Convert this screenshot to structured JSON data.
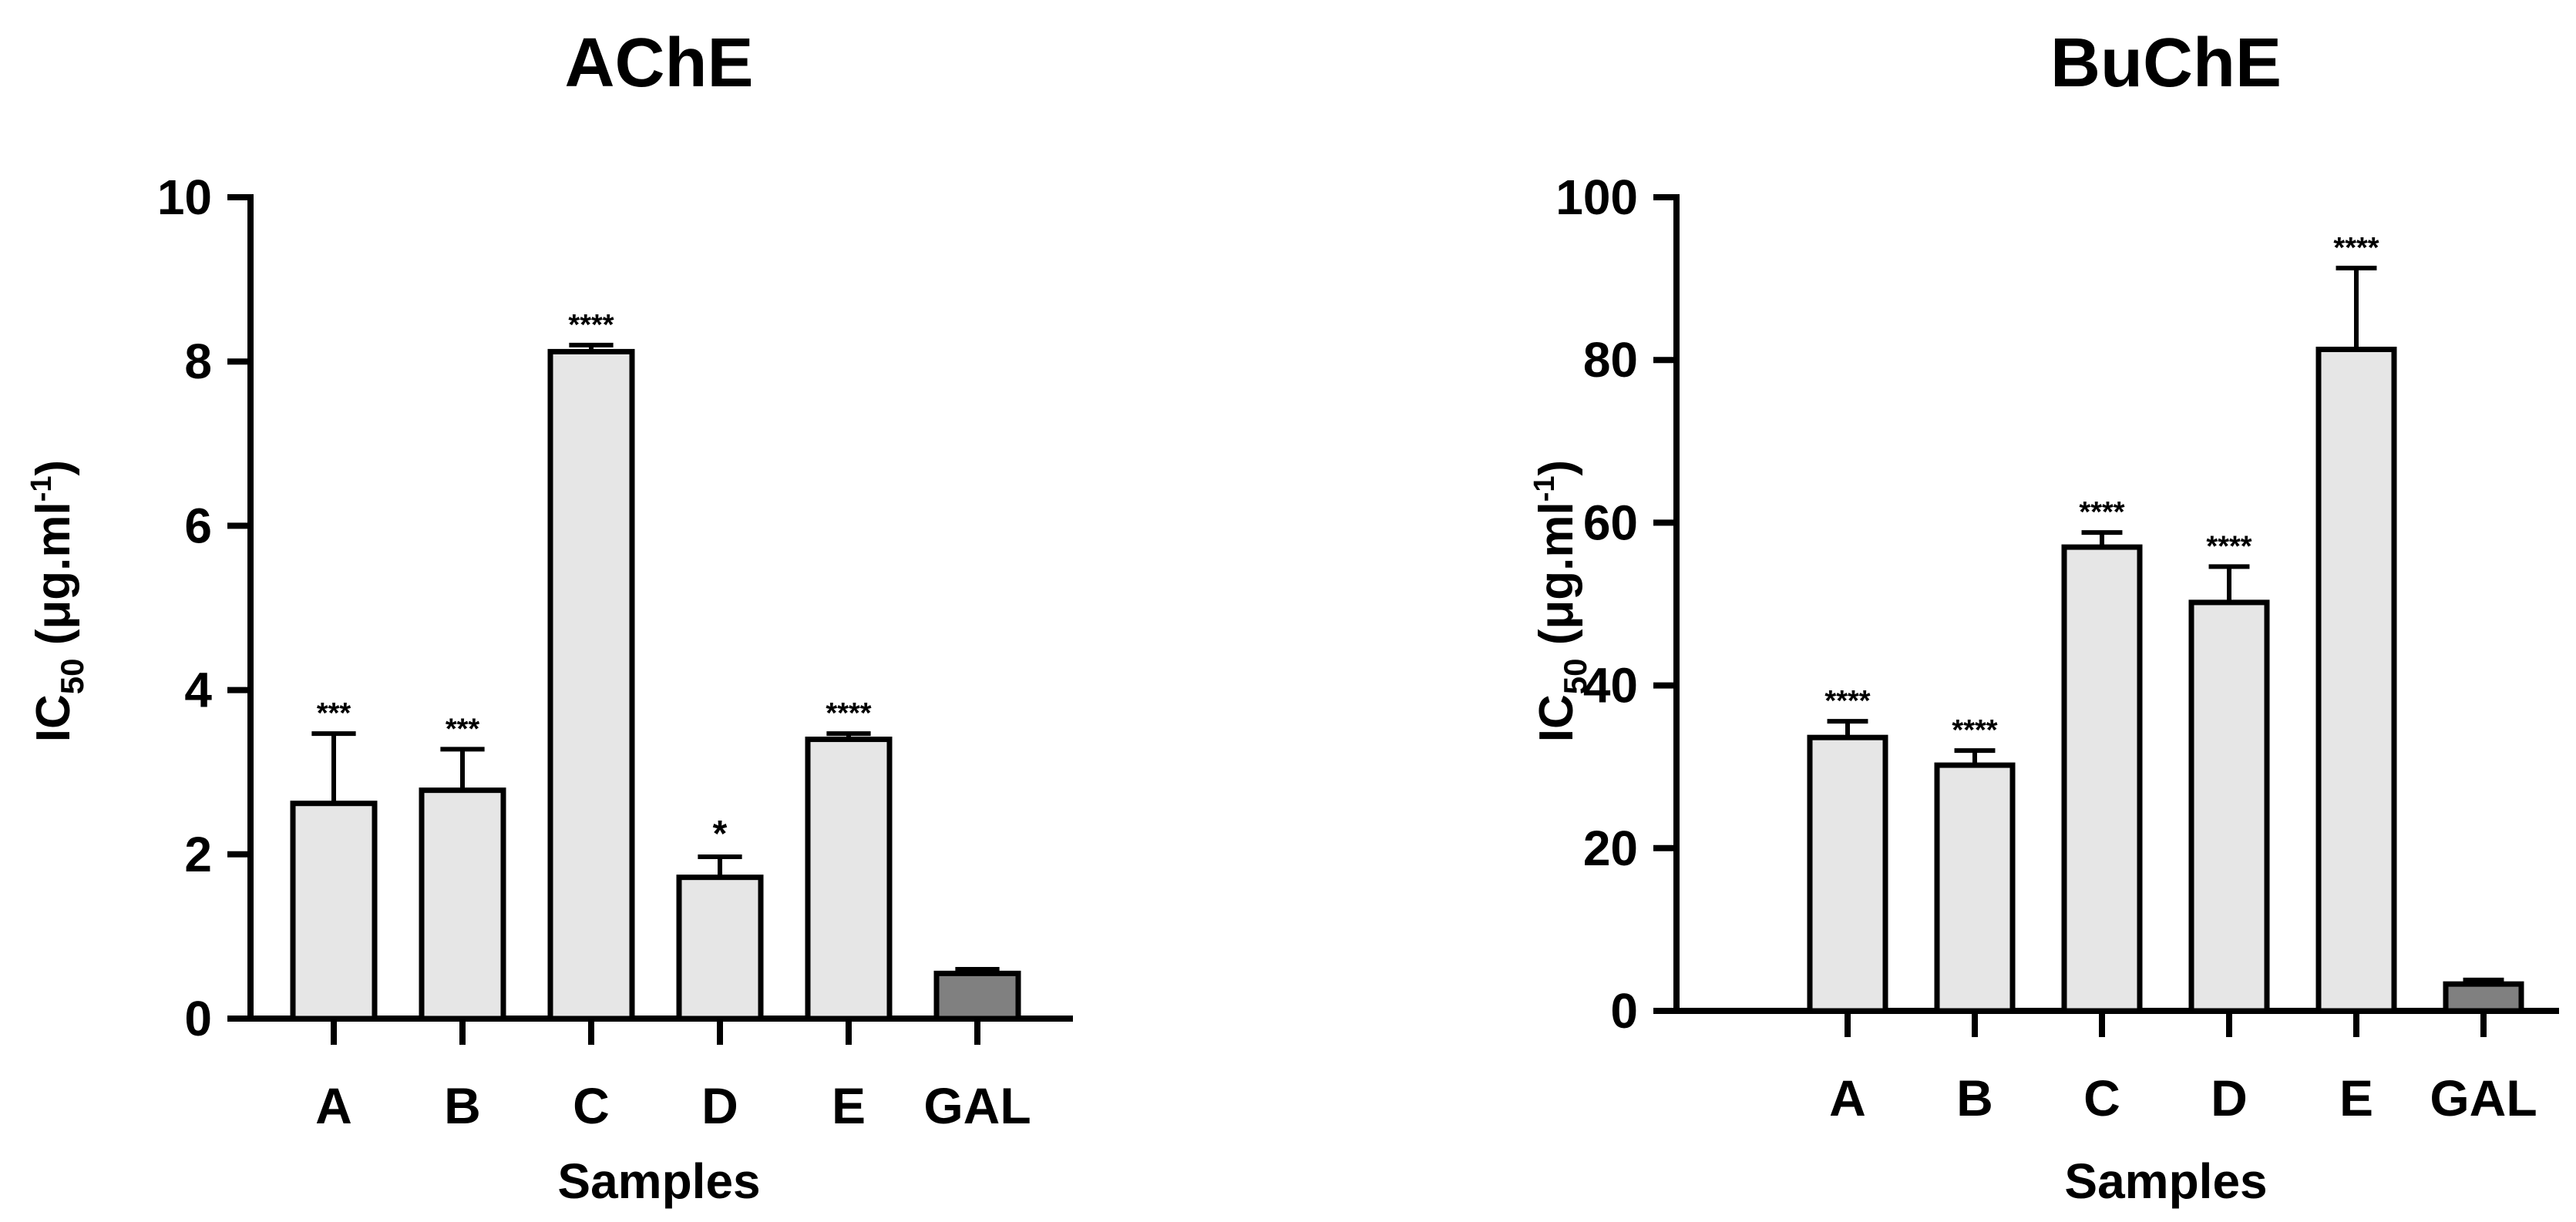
{
  "chart_data": [
    {
      "type": "bar",
      "title": "AChE",
      "xlabel": "Samples",
      "ylabel": {
        "main": "IC",
        "sub": "50",
        "unit_pre": " (μg.ml",
        "sup": "-1",
        "unit_post": ")"
      },
      "ylim": [
        0,
        10
      ],
      "yticks": [
        0,
        2,
        4,
        6,
        8,
        10
      ],
      "grid": false,
      "categories": [
        "A",
        "B",
        "C",
        "D",
        "E",
        "GAL"
      ],
      "values": [
        2.62,
        2.78,
        8.12,
        1.72,
        3.4,
        0.55
      ],
      "errors": [
        0.85,
        0.5,
        0.08,
        0.25,
        0.07,
        0.05
      ],
      "significance": [
        "***",
        "***",
        "****",
        "*",
        "****",
        ""
      ],
      "colors": [
        "#e6e6e6",
        "#e6e6e6",
        "#e6e6e6",
        "#e6e6e6",
        "#e6e6e6",
        "#808080"
      ]
    },
    {
      "type": "bar",
      "title": "BuChE",
      "xlabel": "Samples",
      "ylabel": {
        "main": "IC",
        "sub": "50",
        "unit_pre": " (μg.ml",
        "sup": "-1",
        "unit_post": ")"
      },
      "ylim": [
        0,
        100
      ],
      "yticks": [
        0,
        20,
        40,
        60,
        80,
        100
      ],
      "grid": false,
      "categories": [
        "A",
        "B",
        "C",
        "D",
        "E",
        "GAL"
      ],
      "values": [
        33.6,
        30.2,
        57.0,
        50.2,
        81.3,
        3.3
      ],
      "errors": [
        2.0,
        1.8,
        1.8,
        4.4,
        10.0,
        0.5
      ],
      "significance": [
        "****",
        "****",
        "****",
        "****",
        "****",
        ""
      ],
      "colors": [
        "#e6e6e6",
        "#e6e6e6",
        "#e6e6e6",
        "#e6e6e6",
        "#e6e6e6",
        "#808080"
      ]
    }
  ]
}
